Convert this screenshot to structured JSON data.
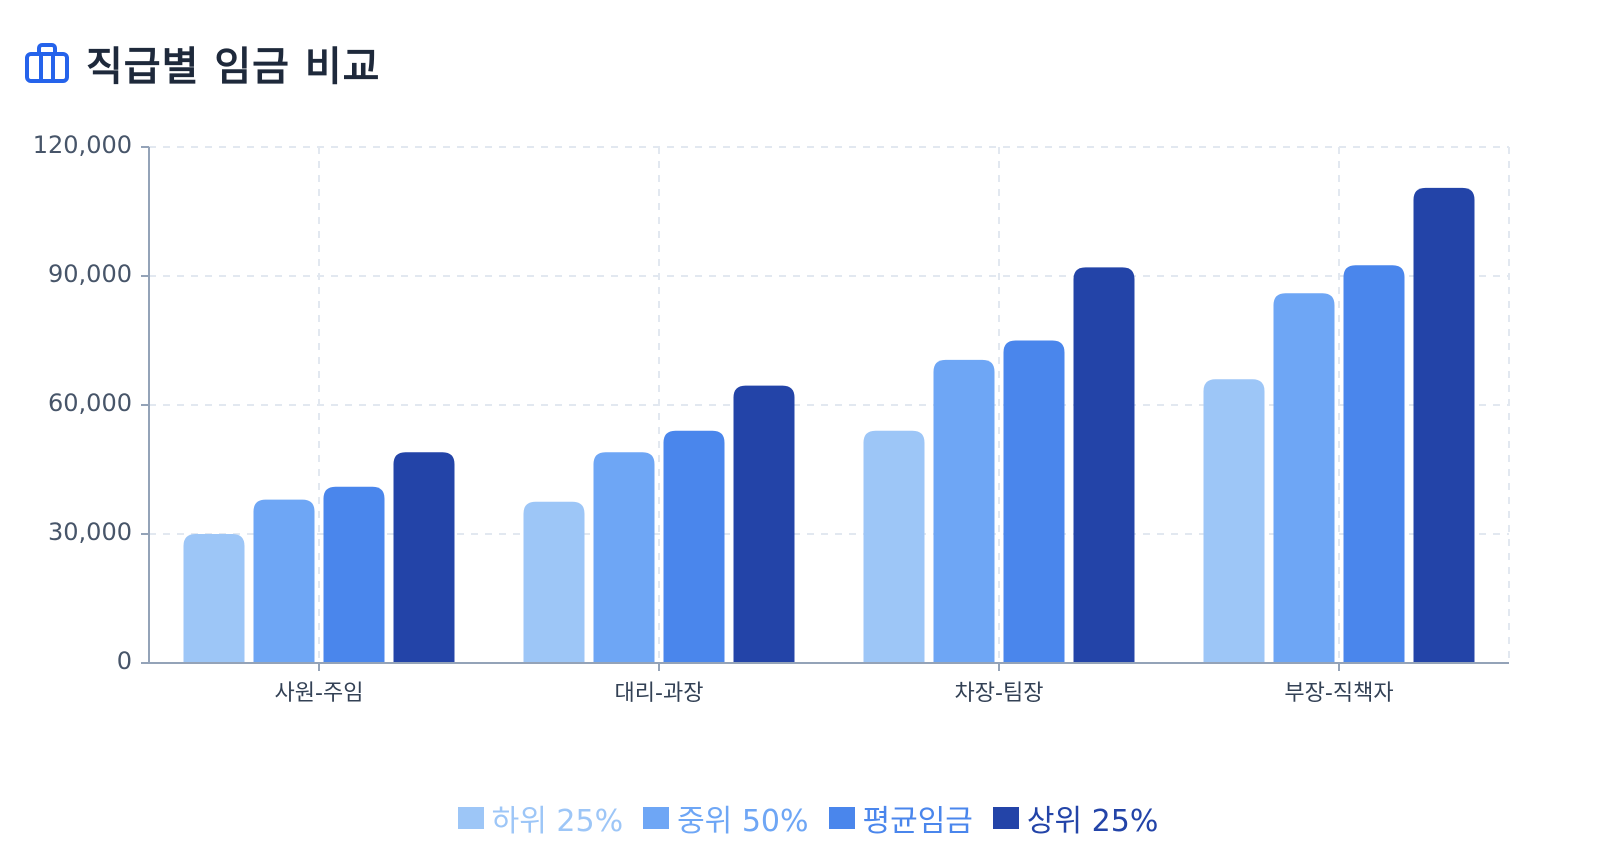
{
  "header": {
    "title": "직급별 임금 비교",
    "icon": "briefcase-icon",
    "icon_color": "#2563eb"
  },
  "chart_data": {
    "type": "bar",
    "title": "직급별 임금 비교",
    "xlabel": "",
    "ylabel": "",
    "categories": [
      "사원-주임",
      "대리-과장",
      "차장-팀장",
      "부장-직책자"
    ],
    "series": [
      {
        "name": "하위 25%",
        "color": "#9dc6f7",
        "values": [
          30000,
          37500,
          54000,
          66000
        ]
      },
      {
        "name": "중위 50%",
        "color": "#6ea6f5",
        "values": [
          38000,
          49000,
          70500,
          86000
        ]
      },
      {
        "name": "평균임금",
        "color": "#4a86ec",
        "values": [
          41000,
          54000,
          75000,
          92500
        ]
      },
      {
        "name": "상위 25%",
        "color": "#2344a8",
        "values": [
          49000,
          64500,
          92000,
          110500
        ]
      }
    ],
    "ylim": [
      0,
      120000
    ],
    "yticks": [
      0,
      30000,
      60000,
      90000,
      120000
    ],
    "ytick_labels": [
      "0",
      "30,000",
      "60,000",
      "90,000",
      "120,000"
    ],
    "grid": true,
    "legend_position": "bottom"
  },
  "legend": [
    {
      "label": "하위 25%",
      "color": "#9dc6f7"
    },
    {
      "label": "중위 50%",
      "color": "#6ea6f5"
    },
    {
      "label": "평균임금",
      "color": "#4a86ec"
    },
    {
      "label": "상위 25%",
      "color": "#2344a8"
    }
  ],
  "axis_colors": {
    "axis": "#94a3b8",
    "grid": "#e2e8f0",
    "tick_text": "#475569"
  }
}
